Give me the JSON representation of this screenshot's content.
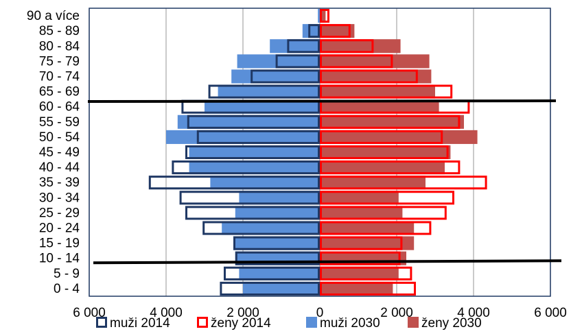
{
  "chart_data": {
    "type": "bar",
    "orientation": "horizontal",
    "categories": [
      "0 - 4",
      "5 - 9",
      "10 - 14",
      "15 - 19",
      "20 - 24",
      "25 - 29",
      "30 - 34",
      "35 - 39",
      "40 - 44",
      "45 - 49",
      "50 - 54",
      "55 - 59",
      "60 - 64",
      "65 - 69",
      "70 - 74",
      "75 - 79",
      "80 - 84",
      "85 - 89",
      "90 a více"
    ],
    "x_ticks": [
      -6000,
      -4000,
      -2000,
      0,
      2000,
      4000,
      6000
    ],
    "x_tick_labels": [
      "6 000",
      "4 000",
      "2 000",
      "0",
      "2 000",
      "4 000",
      "6 000"
    ],
    "xlim": [
      -6000,
      6000
    ],
    "grid": true,
    "legend_position": "bottom",
    "series": [
      {
        "name": "muži 2030",
        "style": "filled",
        "side": "left",
        "color": "#5a8fd8",
        "values": [
          2000,
          2100,
          2200,
          2250,
          2550,
          2200,
          2100,
          2850,
          3400,
          3400,
          4000,
          3700,
          3000,
          2650,
          2300,
          2150,
          1300,
          450,
          50
        ]
      },
      {
        "name": "ženy 2030",
        "style": "filled",
        "side": "right",
        "color": "#c0504d",
        "values": [
          1900,
          2050,
          2250,
          2450,
          2450,
          2150,
          2050,
          2750,
          3250,
          3400,
          4100,
          3750,
          3100,
          3000,
          2900,
          2850,
          2100,
          900,
          150
        ]
      },
      {
        "name": "muži 2014",
        "style": "outline",
        "side": "left",
        "color": "#1f3864",
        "values": [
          2600,
          2500,
          2200,
          2250,
          3050,
          3500,
          3650,
          4450,
          3850,
          3500,
          3200,
          3450,
          3600,
          2900,
          1800,
          1150,
          850,
          300,
          50
        ]
      },
      {
        "name": "ženy 2014",
        "style": "outline",
        "side": "right",
        "color": "#ff0000",
        "values": [
          2500,
          2400,
          2100,
          2150,
          2900,
          3300,
          3500,
          4350,
          3650,
          3350,
          3200,
          3650,
          3900,
          3450,
          2550,
          1900,
          1400,
          800,
          250
        ]
      }
    ],
    "legend": [
      "muži 2014",
      "ženy 2014",
      "muži 2030",
      "ženy 2030"
    ],
    "highlight_lines": [
      "60 - 64",
      "10 - 14"
    ]
  }
}
